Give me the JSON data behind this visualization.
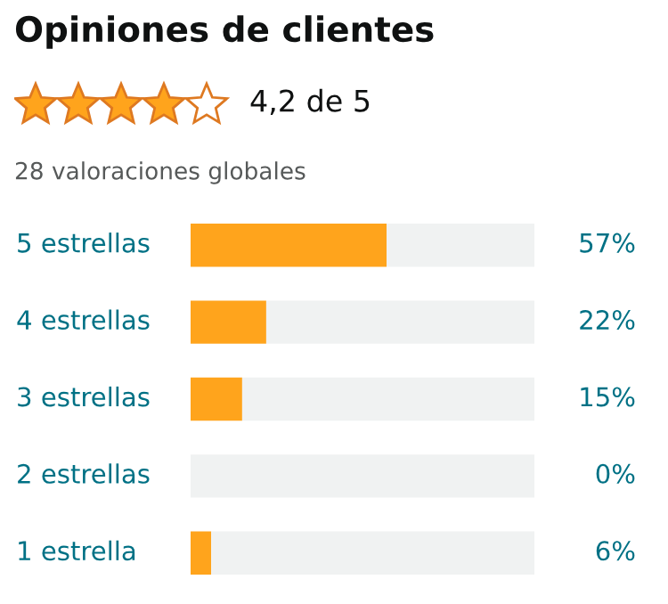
{
  "chart_data": {
    "type": "bar",
    "orientation": "horizontal",
    "stacked": true,
    "title": "Opiniones de clientes",
    "annotations": [
      "4,2 de 5",
      "28 valoraciones globales"
    ],
    "categories": [
      "5 estrellas",
      "4 estrellas",
      "3 estrellas",
      "2 estrellas",
      "1 estrella"
    ],
    "series": [
      {
        "color": "#ffa41c",
        "values": [
          57,
          22,
          15,
          0,
          6
        ],
        "value_labels": [
          "57%",
          "22%",
          "15%",
          "0%",
          "6%"
        ]
      },
      {
        "color": "#f0f2f2",
        "values": [
          43,
          78,
          85,
          100,
          94
        ]
      }
    ],
    "xlim": [
      0,
      100
    ]
  }
}
